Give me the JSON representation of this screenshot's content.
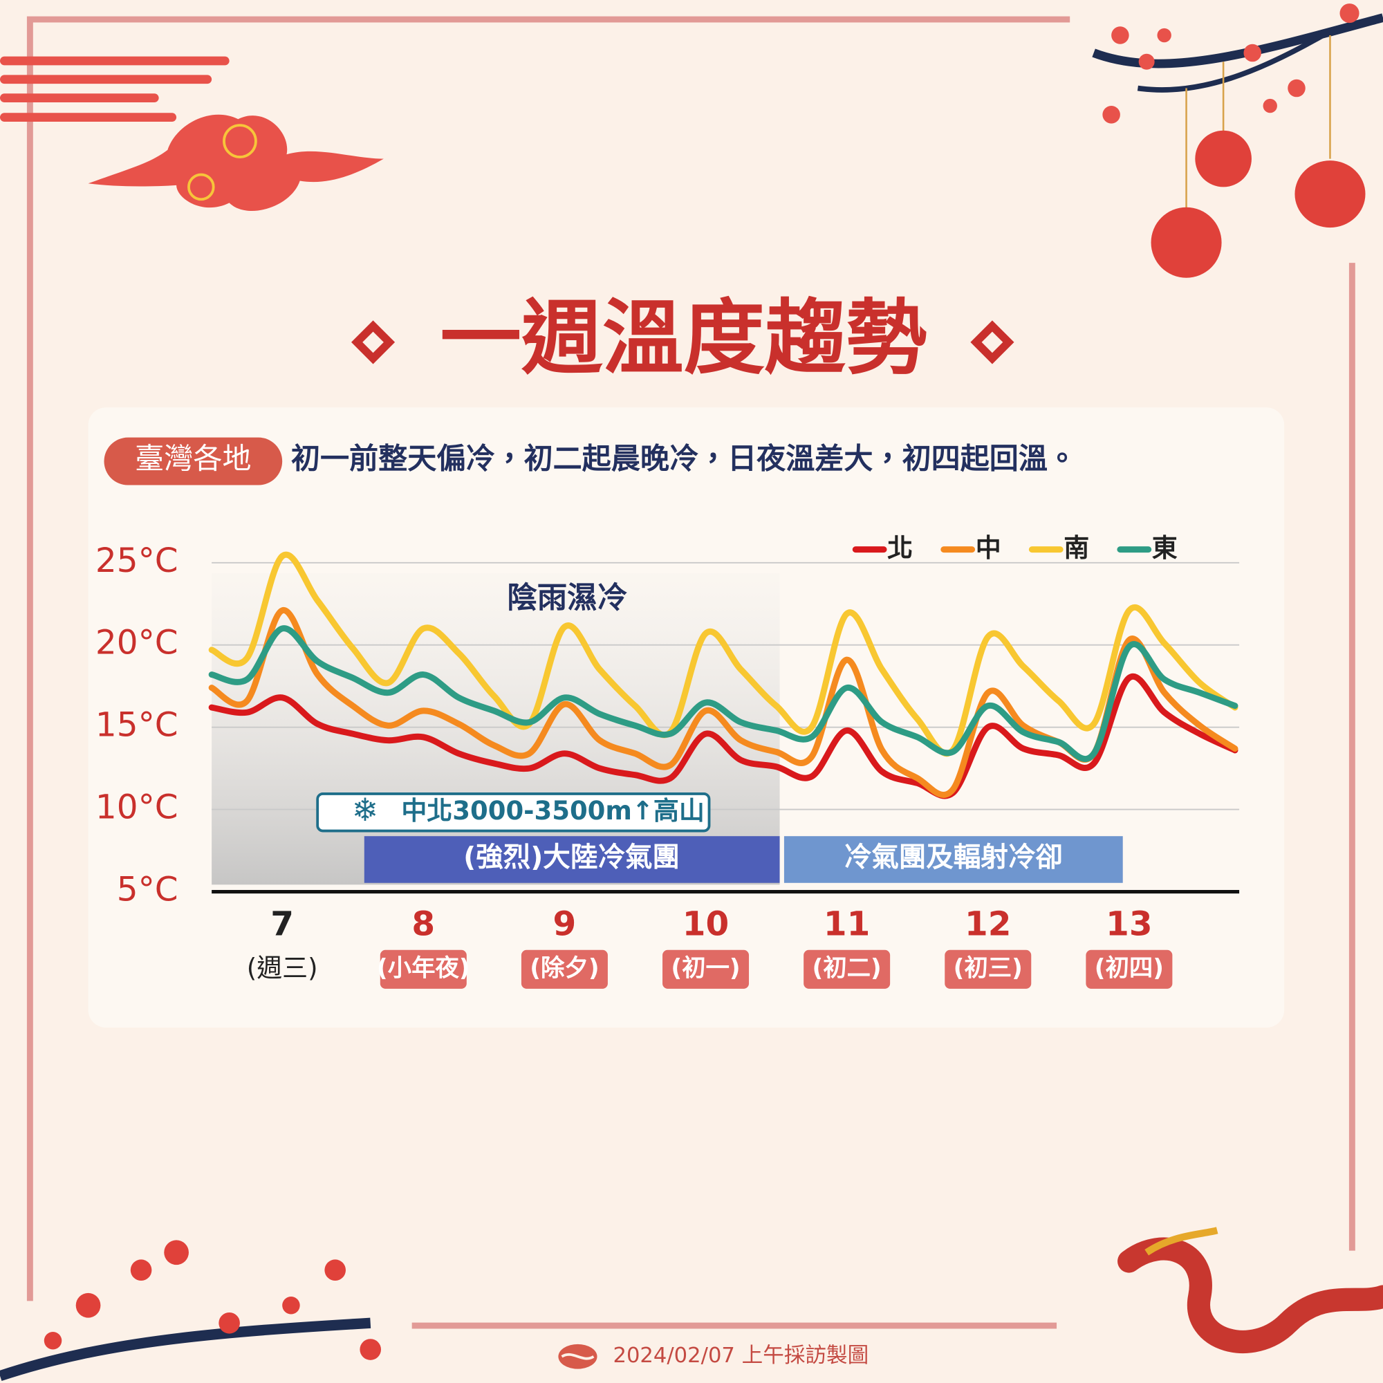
{
  "chart_data": {
    "type": "line",
    "title": "一週溫度趨勢",
    "region_tag": "臺灣各地",
    "subtitle": "初一前整天偏冷，初二起晨晚冷，日夜溫差大，初四起回溫。",
    "x": [
      6.5,
      6.75,
      7,
      7.25,
      7.5,
      7.75,
      8,
      8.25,
      8.5,
      8.75,
      9,
      9.25,
      9.5,
      9.75,
      10,
      10.25,
      10.5,
      10.75,
      11,
      11.25,
      11.5,
      11.75,
      12,
      12.25,
      12.5,
      12.75,
      13,
      13.25,
      13.5,
      13.75
    ],
    "xlim": [
      6.5,
      13.78
    ],
    "xticks": [
      7,
      8,
      9,
      10,
      11,
      12,
      13
    ],
    "xtick_sublabels": [
      "(週三)",
      "(小年夜)",
      "(除夕)",
      "(初一)",
      "(初二)",
      "(初三)",
      "(初四)"
    ],
    "ylim": [
      5,
      26
    ],
    "yticks": [
      {
        "value": 5,
        "label": "5°C"
      },
      {
        "value": 10,
        "label": "10°C"
      },
      {
        "value": 15,
        "label": "15°C"
      },
      {
        "value": 20,
        "label": "20°C"
      },
      {
        "value": 25,
        "label": "25°C"
      }
    ],
    "grid": true,
    "legend": "top-right",
    "series": [
      {
        "name": "北",
        "color": "#d9191c",
        "values": [
          16.2,
          15.9,
          16.8,
          15.2,
          14.6,
          14.2,
          14.4,
          13.4,
          12.8,
          12.5,
          13.4,
          12.5,
          12.1,
          11.9,
          14.6,
          13.0,
          12.6,
          12.0,
          14.8,
          12.3,
          11.6,
          11.0,
          15.0,
          13.7,
          13.3,
          12.8,
          18.0,
          15.9,
          14.6,
          13.6
        ]
      },
      {
        "name": "中",
        "color": "#f58a1f",
        "values": [
          17.4,
          16.6,
          22.1,
          18.2,
          16.3,
          15.1,
          16.0,
          15.2,
          13.9,
          13.4,
          16.4,
          14.2,
          13.4,
          12.7,
          16.0,
          14.2,
          13.5,
          13.2,
          19.1,
          13.6,
          11.9,
          11.2,
          17.1,
          15.1,
          14.1,
          13.4,
          20.3,
          17.1,
          15.1,
          13.7
        ]
      },
      {
        "name": "南",
        "color": "#f8c731",
        "values": [
          19.7,
          19.2,
          25.4,
          22.7,
          19.8,
          17.7,
          21.0,
          19.5,
          16.9,
          15.2,
          21.1,
          18.5,
          16.3,
          14.7,
          20.7,
          18.5,
          16.3,
          15.0,
          21.9,
          18.5,
          15.5,
          13.6,
          20.5,
          18.7,
          16.6,
          15.2,
          22.1,
          20.1,
          17.7,
          16.2
        ]
      },
      {
        "name": "東",
        "color": "#2e9c85",
        "values": [
          18.2,
          17.9,
          21.0,
          19.0,
          18.0,
          17.1,
          18.2,
          16.8,
          16.0,
          15.3,
          16.8,
          15.8,
          15.1,
          14.6,
          16.5,
          15.3,
          14.8,
          14.4,
          17.4,
          15.3,
          14.4,
          13.5,
          16.3,
          14.7,
          14.1,
          13.4,
          19.9,
          17.9,
          17.1,
          16.3
        ]
      }
    ],
    "annotations": [
      "陰雨濕冷",
      "中北3000-3500m↑高山",
      "(強烈)大陸冷氣團",
      "冷氣團及輻射冷卻"
    ],
    "footer": "2024/02/07 上午採訪製圖"
  }
}
